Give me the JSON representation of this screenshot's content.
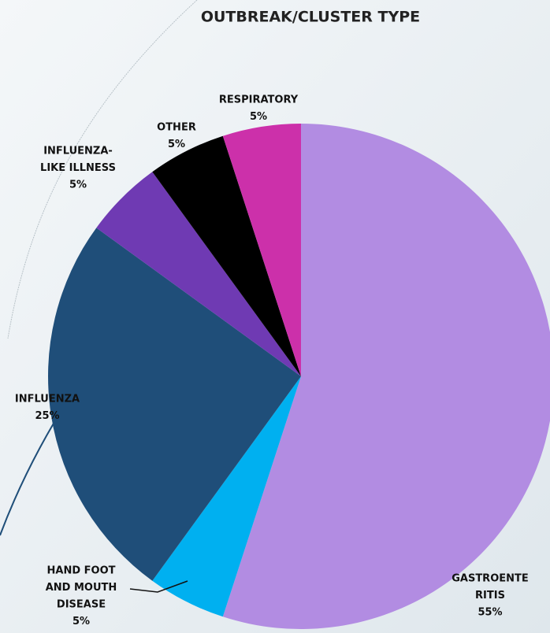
{
  "chart_data": {
    "type": "pie",
    "title": "OUTBREAK/CLUSTER TYPE",
    "categories": [
      [
        "GASTROENTE",
        "RITIS"
      ],
      [
        "HAND  FOOT",
        "AND MOUTH",
        "DISEASE"
      ],
      [
        "INFLUENZA"
      ],
      [
        "INFLUENZA-",
        "LIKE ILLNESS"
      ],
      [
        "OTHER"
      ],
      [
        "RESPIRATORY"
      ]
    ],
    "values": [
      55,
      5,
      25,
      5,
      5,
      5
    ],
    "value_labels": [
      "55%",
      "5%",
      "25%",
      "5%",
      "5%",
      "5%"
    ],
    "colors": [
      "#b28ce2",
      "#00b0f0",
      "#1f4e79",
      "#6f3ab3",
      "#000000",
      "#cc30aa"
    ]
  }
}
